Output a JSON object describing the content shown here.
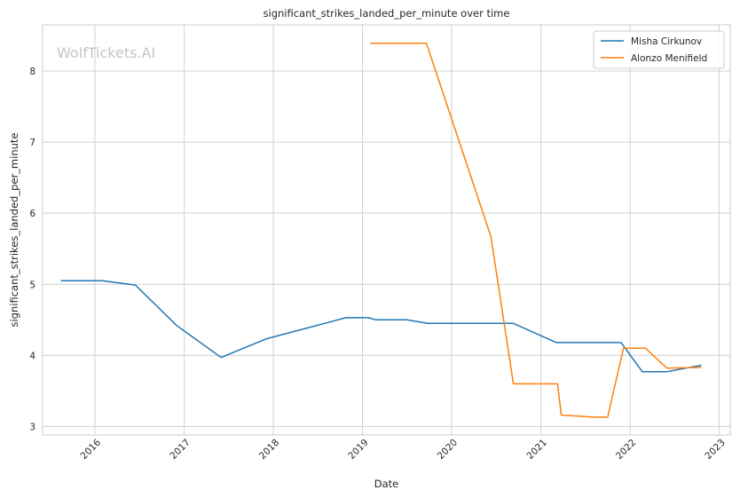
{
  "watermark": "WolfTickets.AI",
  "chart_data": {
    "type": "line",
    "title": "significant_strikes_landed_per_minute over time",
    "xlabel": "Date",
    "ylabel": "significant_strikes_landed_per_minute",
    "xlim": [
      "2015-06-01",
      "2023-02-15"
    ],
    "ylim": [
      2.88,
      8.65
    ],
    "x_ticks": [
      "2016",
      "2017",
      "2018",
      "2019",
      "2020",
      "2021",
      "2022",
      "2023"
    ],
    "y_ticks": [
      3,
      4,
      5,
      6,
      7,
      8
    ],
    "grid": true,
    "legend_position": "top-right",
    "series": [
      {
        "name": "Misha Cirkunov",
        "color": "#1f77b4",
        "points": [
          [
            "2015-08-15",
            5.05
          ],
          [
            "2016-02-01",
            5.05
          ],
          [
            "2016-06-15",
            4.99
          ],
          [
            "2016-12-01",
            4.42
          ],
          [
            "2017-06-01",
            3.97
          ],
          [
            "2017-12-01",
            4.23
          ],
          [
            "2018-10-25",
            4.53
          ],
          [
            "2019-01-25",
            4.53
          ],
          [
            "2019-02-25",
            4.5
          ],
          [
            "2019-07-01",
            4.5
          ],
          [
            "2019-09-25",
            4.45
          ],
          [
            "2020-09-10",
            4.45
          ],
          [
            "2021-03-05",
            4.18
          ],
          [
            "2021-11-25",
            4.18
          ],
          [
            "2022-02-20",
            3.77
          ],
          [
            "2022-06-01",
            3.77
          ],
          [
            "2022-10-20",
            3.86
          ]
        ]
      },
      {
        "name": "Alonzo Menifield",
        "color": "#ff7f0e",
        "points": [
          [
            "2019-02-01",
            8.39
          ],
          [
            "2019-09-20",
            8.39
          ],
          [
            "2020-06-10",
            5.67
          ],
          [
            "2020-09-10",
            3.6
          ],
          [
            "2021-03-10",
            3.6
          ],
          [
            "2021-03-25",
            3.16
          ],
          [
            "2021-08-15",
            3.13
          ],
          [
            "2021-10-01",
            3.13
          ],
          [
            "2021-12-05",
            4.1
          ],
          [
            "2022-03-05",
            4.1
          ],
          [
            "2022-06-01",
            3.82
          ],
          [
            "2022-10-20",
            3.83
          ]
        ]
      }
    ]
  }
}
